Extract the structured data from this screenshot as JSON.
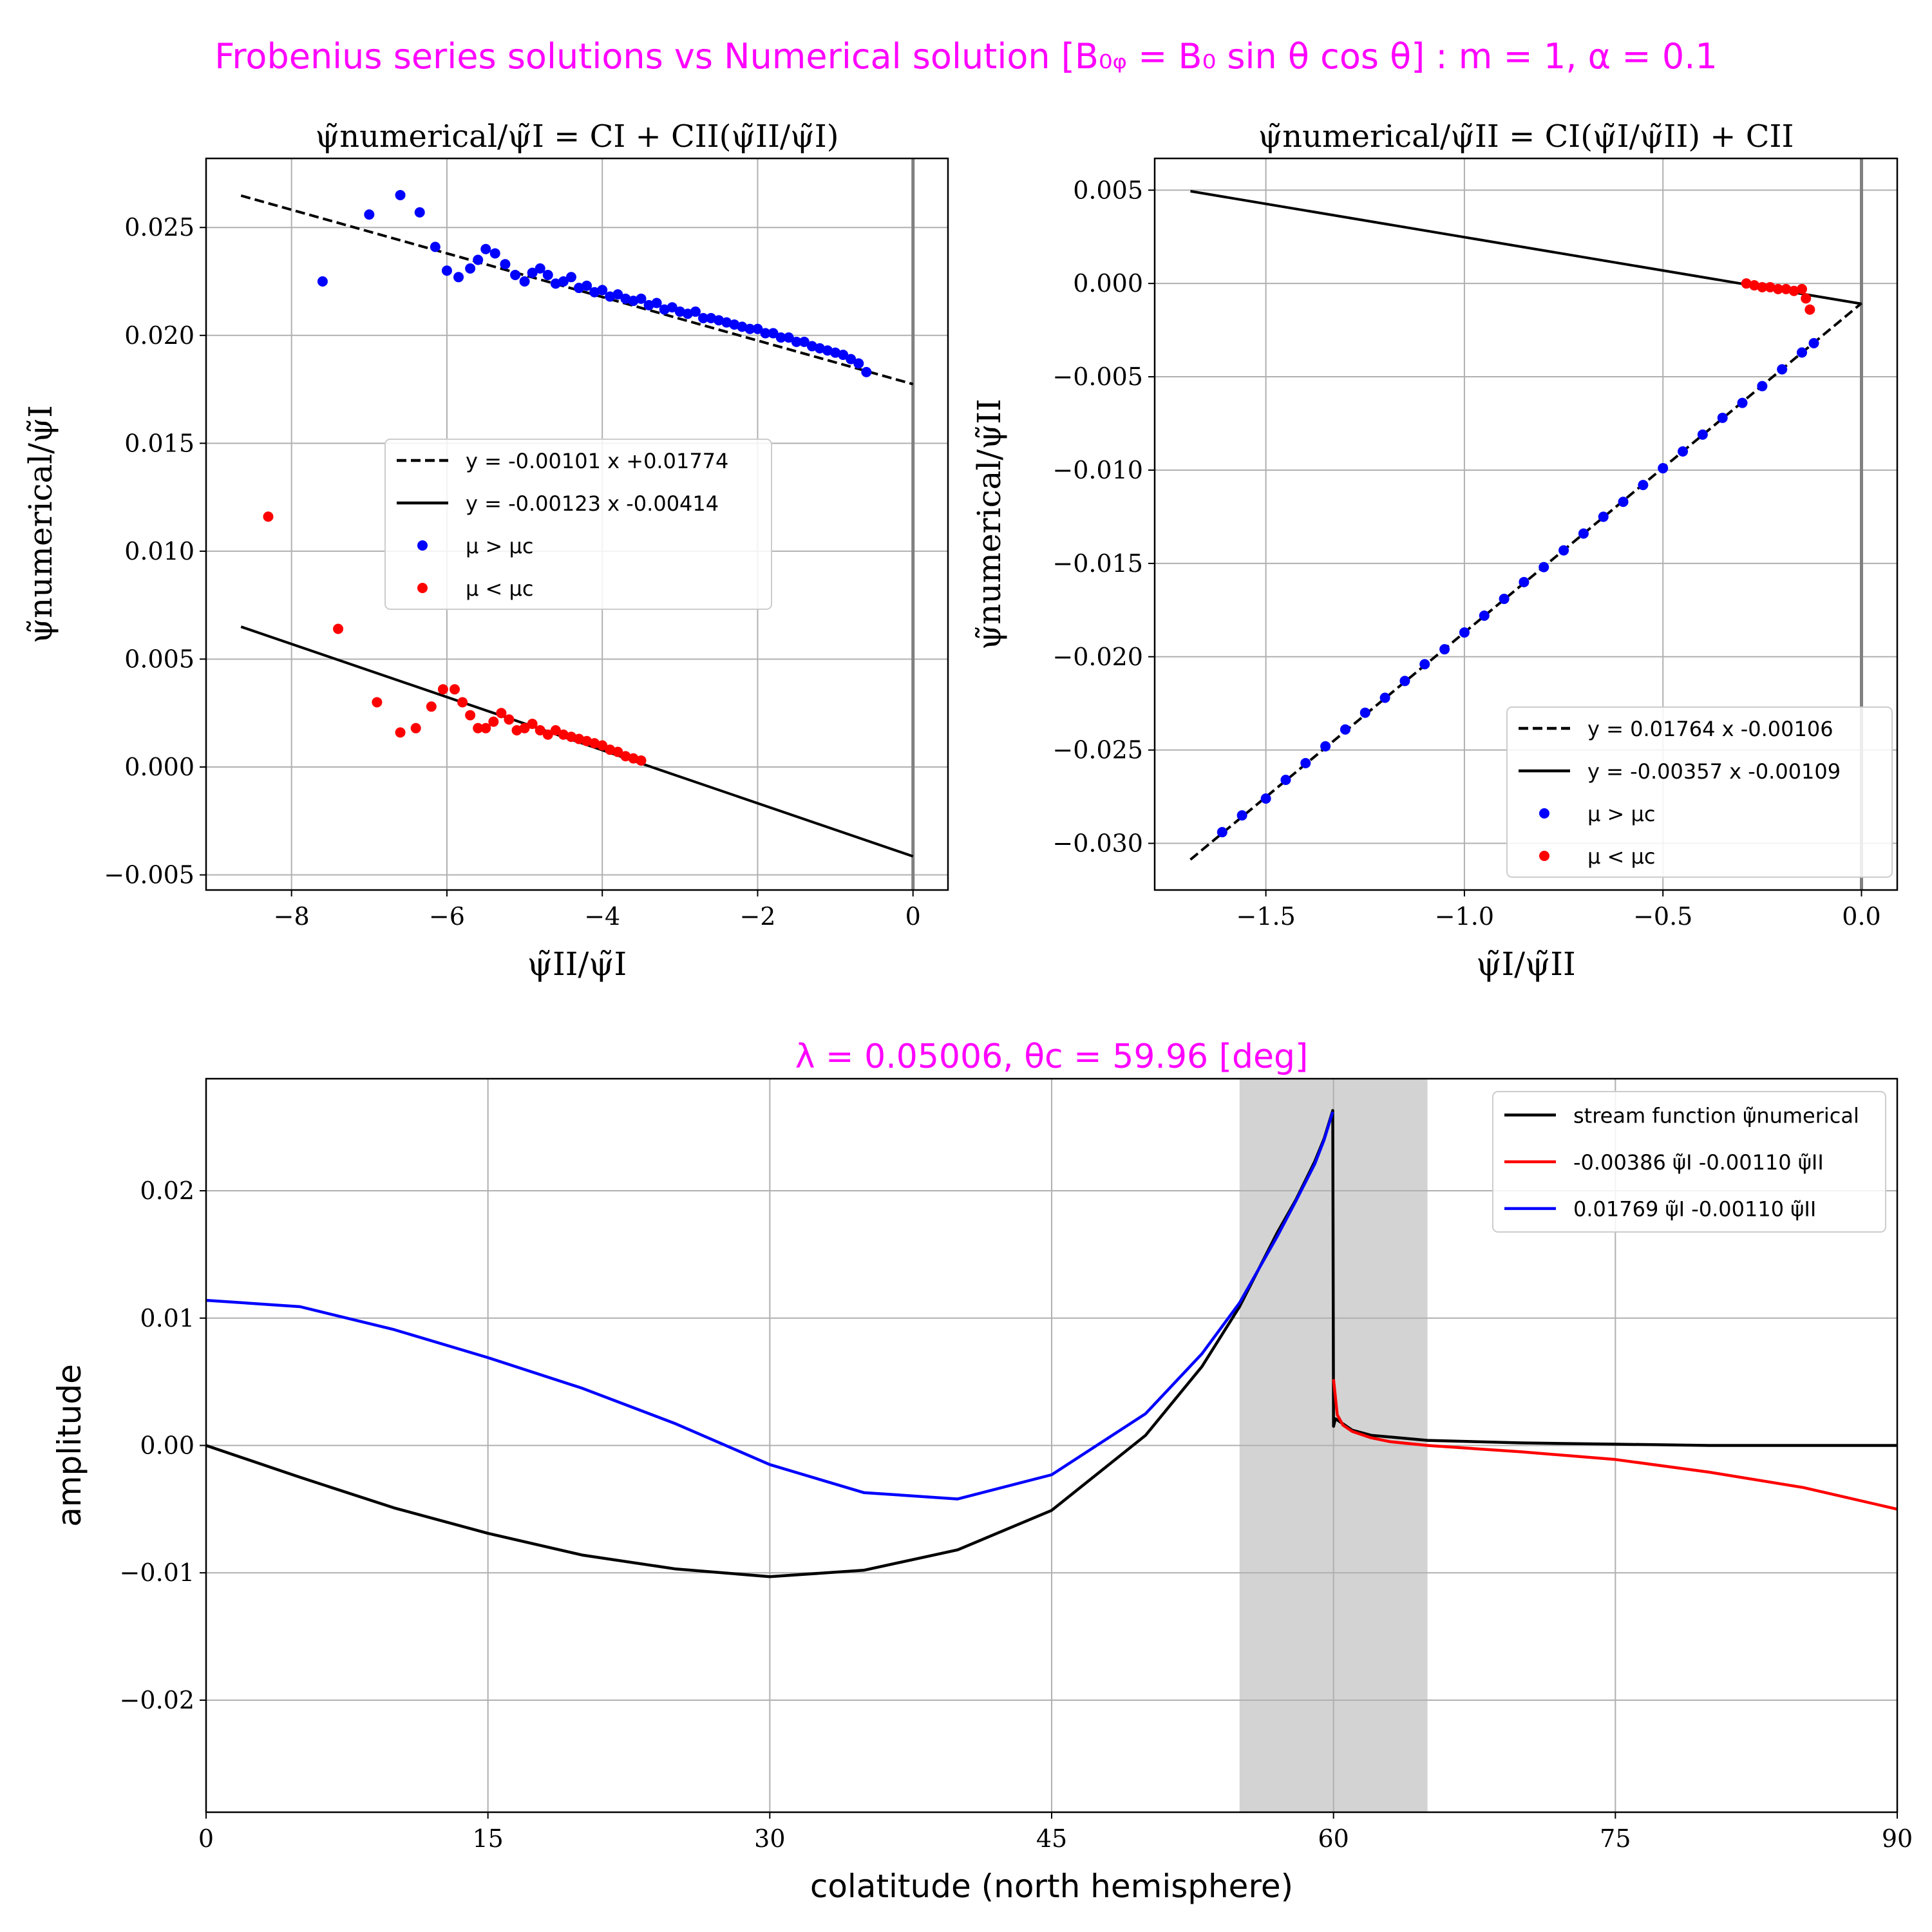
{
  "suptitle": "Frobenius series solutions vs Numerical solution [B₀ᵩ = B₀ sin θ cos θ] : m = 1, α = 0.1",
  "colors": {
    "title": "#ff00ff",
    "blue": "#0000ff",
    "red": "#ff0000",
    "black": "#000000",
    "grid": "#b0b0b0",
    "shade": "#d3d3d3",
    "vline": "#808080"
  },
  "chart_data": [
    {
      "type": "scatter",
      "title": "ψ̃numerical/ψ̃I = CI + CII(ψ̃II/ψ̃I)",
      "xlabel": "ψ̃II/ψ̃I",
      "ylabel": "ψ̃numerical/ψ̃I",
      "xlim": [
        -9.1,
        0.45
      ],
      "ylim": [
        -0.0057,
        0.0282
      ],
      "xticks": [
        -8,
        -6,
        -4,
        -2,
        0
      ],
      "yticks": [
        -0.005,
        0.0,
        0.005,
        0.01,
        0.015,
        0.02,
        0.025
      ],
      "xtick_labels": [
        "−8",
        "−6",
        "−4",
        "−2",
        "0"
      ],
      "ytick_labels": [
        "−0.005",
        "0.000",
        "0.005",
        "0.010",
        "0.015",
        "0.020",
        "0.025"
      ],
      "grid": true,
      "vline_x": 0,
      "legend_position": "center",
      "lines": [
        {
          "name": "y = -0.00101 x +0.01774",
          "slope": -0.00101,
          "intercept": 0.01774,
          "x_range": [
            -8.65,
            0
          ],
          "style": "dashed",
          "color": "#000000"
        },
        {
          "name": "y = -0.00123 x -0.00414",
          "slope": -0.00123,
          "intercept": -0.00414,
          "x_range": [
            -8.65,
            0
          ],
          "style": "solid",
          "color": "#000000"
        }
      ],
      "series": [
        {
          "name": "μ > μc",
          "color": "#0000ff",
          "points": [
            [
              -7.6,
              0.0225
            ],
            [
              -7.0,
              0.0256
            ],
            [
              -6.6,
              0.0265
            ],
            [
              -6.35,
              0.0257
            ],
            [
              -6.15,
              0.0241
            ],
            [
              -6.0,
              0.023
            ],
            [
              -5.85,
              0.0227
            ],
            [
              -5.7,
              0.0231
            ],
            [
              -5.6,
              0.0235
            ],
            [
              -5.5,
              0.024
            ],
            [
              -5.38,
              0.0238
            ],
            [
              -5.25,
              0.0233
            ],
            [
              -5.12,
              0.0228
            ],
            [
              -5.0,
              0.0225
            ],
            [
              -4.9,
              0.0229
            ],
            [
              -4.8,
              0.0231
            ],
            [
              -4.7,
              0.0228
            ],
            [
              -4.6,
              0.0224
            ],
            [
              -4.5,
              0.0225
            ],
            [
              -4.4,
              0.0227
            ],
            [
              -4.3,
              0.0222
            ],
            [
              -4.2,
              0.0223
            ],
            [
              -4.1,
              0.022
            ],
            [
              -4.0,
              0.0221
            ],
            [
              -3.9,
              0.0218
            ],
            [
              -3.8,
              0.0219
            ],
            [
              -3.7,
              0.0217
            ],
            [
              -3.6,
              0.0216
            ],
            [
              -3.5,
              0.0217
            ],
            [
              -3.4,
              0.0214
            ],
            [
              -3.3,
              0.0215
            ],
            [
              -3.2,
              0.0212
            ],
            [
              -3.1,
              0.0213
            ],
            [
              -3.0,
              0.0211
            ],
            [
              -2.9,
              0.021
            ],
            [
              -2.8,
              0.0211
            ],
            [
              -2.7,
              0.0208
            ],
            [
              -2.6,
              0.0208
            ],
            [
              -2.5,
              0.0207
            ],
            [
              -2.4,
              0.0206
            ],
            [
              -2.3,
              0.0205
            ],
            [
              -2.2,
              0.0204
            ],
            [
              -2.1,
              0.0203
            ],
            [
              -2.0,
              0.0203
            ],
            [
              -1.9,
              0.0201
            ],
            [
              -1.8,
              0.0201
            ],
            [
              -1.7,
              0.0199
            ],
            [
              -1.6,
              0.0199
            ],
            [
              -1.5,
              0.0197
            ],
            [
              -1.4,
              0.0197
            ],
            [
              -1.3,
              0.0195
            ],
            [
              -1.2,
              0.0194
            ],
            [
              -1.1,
              0.0193
            ],
            [
              -1.0,
              0.0192
            ],
            [
              -0.9,
              0.0191
            ],
            [
              -0.8,
              0.0189
            ],
            [
              -0.7,
              0.0187
            ],
            [
              -0.6,
              0.0183
            ]
          ]
        },
        {
          "name": "μ < μc",
          "color": "#ff0000",
          "points": [
            [
              -8.3,
              0.0116
            ],
            [
              -7.4,
              0.0064
            ],
            [
              -6.9,
              0.003
            ],
            [
              -6.6,
              0.0016
            ],
            [
              -6.4,
              0.0018
            ],
            [
              -6.2,
              0.0028
            ],
            [
              -6.05,
              0.0036
            ],
            [
              -5.9,
              0.0036
            ],
            [
              -5.8,
              0.003
            ],
            [
              -5.7,
              0.0024
            ],
            [
              -5.6,
              0.0018
            ],
            [
              -5.5,
              0.0018
            ],
            [
              -5.4,
              0.0021
            ],
            [
              -5.3,
              0.0025
            ],
            [
              -5.2,
              0.0022
            ],
            [
              -5.1,
              0.0017
            ],
            [
              -5.0,
              0.0018
            ],
            [
              -4.9,
              0.002
            ],
            [
              -4.8,
              0.0017
            ],
            [
              -4.7,
              0.0015
            ],
            [
              -4.6,
              0.0017
            ],
            [
              -4.5,
              0.0015
            ],
            [
              -4.4,
              0.0014
            ],
            [
              -4.3,
              0.0013
            ],
            [
              -4.2,
              0.0012
            ],
            [
              -4.1,
              0.0011
            ],
            [
              -4.0,
              0.001
            ],
            [
              -3.9,
              0.0008
            ],
            [
              -3.8,
              0.0007
            ],
            [
              -3.7,
              0.0005
            ],
            [
              -3.6,
              0.0004
            ],
            [
              -3.5,
              0.0003
            ]
          ]
        }
      ]
    },
    {
      "type": "scatter",
      "title": "ψ̃numerical/ψ̃II = CI(ψ̃I/ψ̃II) + CII",
      "xlabel": "ψ̃I/ψ̃II",
      "ylabel": "ψ̃numerical/ψ̃II",
      "xlim": [
        -1.78,
        0.09
      ],
      "ylim": [
        -0.0325,
        0.0067
      ],
      "xticks": [
        -1.5,
        -1.0,
        -0.5,
        0.0
      ],
      "yticks": [
        -0.03,
        -0.025,
        -0.02,
        -0.015,
        -0.01,
        -0.005,
        0.0,
        0.005
      ],
      "xtick_labels": [
        "−1.5",
        "−1.0",
        "−0.5",
        "0.0"
      ],
      "ytick_labels": [
        "−0.030",
        "−0.025",
        "−0.020",
        "−0.015",
        "−0.010",
        "−0.005",
        "0.000",
        "0.005"
      ],
      "grid": true,
      "vline_x": 0,
      "legend_position": "lower right",
      "lines": [
        {
          "name": "y = 0.01764 x -0.00106",
          "slope": 0.01764,
          "intercept": -0.00106,
          "x_range": [
            -1.69,
            0
          ],
          "style": "dashed",
          "color": "#000000"
        },
        {
          "name": "y = -0.00357 x -0.00109",
          "slope": -0.00357,
          "intercept": -0.00109,
          "x_range": [
            -1.69,
            0
          ],
          "style": "solid",
          "color": "#000000"
        }
      ],
      "series": [
        {
          "name": "μ > μc",
          "color": "#0000ff",
          "points": [
            [
              -1.61,
              -0.0294
            ],
            [
              -1.56,
              -0.0285
            ],
            [
              -1.5,
              -0.0276
            ],
            [
              -1.45,
              -0.0266
            ],
            [
              -1.4,
              -0.0257
            ],
            [
              -1.35,
              -0.0248
            ],
            [
              -1.3,
              -0.0239
            ],
            [
              -1.25,
              -0.023
            ],
            [
              -1.2,
              -0.0222
            ],
            [
              -1.15,
              -0.0213
            ],
            [
              -1.1,
              -0.0204
            ],
            [
              -1.05,
              -0.0196
            ],
            [
              -1.0,
              -0.0187
            ],
            [
              -0.95,
              -0.0178
            ],
            [
              -0.9,
              -0.0169
            ],
            [
              -0.85,
              -0.016
            ],
            [
              -0.8,
              -0.0152
            ],
            [
              -0.75,
              -0.0143
            ],
            [
              -0.7,
              -0.0134
            ],
            [
              -0.65,
              -0.0125
            ],
            [
              -0.6,
              -0.0117
            ],
            [
              -0.55,
              -0.0108
            ],
            [
              -0.5,
              -0.0099
            ],
            [
              -0.45,
              -0.009
            ],
            [
              -0.4,
              -0.0081
            ],
            [
              -0.35,
              -0.0072
            ],
            [
              -0.3,
              -0.0064
            ],
            [
              -0.25,
              -0.0055
            ],
            [
              -0.2,
              -0.0046
            ],
            [
              -0.15,
              -0.0037
            ],
            [
              -0.12,
              -0.0032
            ]
          ]
        },
        {
          "name": "μ < μc",
          "color": "#ff0000",
          "points": [
            [
              -0.29,
              0.0
            ],
            [
              -0.27,
              -0.0001
            ],
            [
              -0.25,
              -0.0002
            ],
            [
              -0.23,
              -0.0002
            ],
            [
              -0.21,
              -0.0003
            ],
            [
              -0.19,
              -0.0003
            ],
            [
              -0.17,
              -0.0004
            ],
            [
              -0.15,
              -0.0003
            ],
            [
              -0.14,
              -0.0008
            ],
            [
              -0.13,
              -0.0014
            ]
          ]
        }
      ]
    },
    {
      "type": "line",
      "title": "λ = 0.05006, θc = 59.96 [deg]",
      "xlabel": "colatitude (north hemisphere)",
      "ylabel": "amplitude",
      "xlim": [
        0,
        90
      ],
      "ylim": [
        -0.0288,
        0.0288
      ],
      "xticks": [
        0,
        15,
        30,
        45,
        60,
        75,
        90
      ],
      "yticks": [
        -0.02,
        -0.01,
        0.0,
        0.01,
        0.02
      ],
      "xtick_labels": [
        "0",
        "15",
        "30",
        "45",
        "60",
        "75",
        "90"
      ],
      "ytick_labels": [
        "−0.02",
        "−0.01",
        "0.00",
        "0.01",
        "0.02"
      ],
      "grid": true,
      "shaded_x_range": [
        55,
        65
      ],
      "legend_position": "upper right",
      "series": [
        {
          "name": "stream function ψ̃numerical",
          "color": "#000000",
          "x": [
            0,
            5,
            10,
            15,
            20,
            25,
            30,
            35,
            40,
            45,
            50,
            53,
            55,
            57,
            58,
            59,
            59.5,
            59.96,
            60.0,
            60.1,
            60.5,
            61,
            62,
            65,
            70,
            75,
            80,
            85,
            90
          ],
          "y": [
            0.0,
            -0.0025,
            -0.0049,
            -0.0069,
            -0.0086,
            -0.0097,
            -0.0103,
            -0.0098,
            -0.0082,
            -0.0051,
            0.0008,
            0.0062,
            0.0109,
            0.0167,
            0.0193,
            0.0223,
            0.0241,
            0.0263,
            0.0015,
            0.0021,
            0.0017,
            0.0012,
            0.0008,
            0.0004,
            0.0002,
            0.0001,
            0.0,
            0.0,
            0.0
          ]
        },
        {
          "name": "-0.00386 ψ̃I -0.00110 ψ̃II",
          "color": "#ff0000",
          "x": [
            60.0,
            60.2,
            60.5,
            61,
            62,
            63,
            65,
            70,
            75,
            80,
            85,
            90
          ],
          "y": [
            0.0052,
            0.0024,
            0.0016,
            0.0011,
            0.0006,
            0.0003,
            0.0,
            -0.0005,
            -0.0011,
            -0.0021,
            -0.0033,
            -0.005
          ]
        },
        {
          "name": "0.01769 ψ̃I -0.00110 ψ̃II",
          "color": "#0000ff",
          "x": [
            0,
            5,
            10,
            15,
            20,
            25,
            30,
            35,
            40,
            45,
            50,
            53,
            55,
            57,
            58,
            59,
            59.5,
            59.96
          ],
          "y": [
            0.0114,
            0.0109,
            0.0091,
            0.0069,
            0.0045,
            0.0017,
            -0.0015,
            -0.0037,
            -0.0042,
            -0.0023,
            0.0025,
            0.0072,
            0.0112,
            0.0164,
            0.0192,
            0.0221,
            0.024,
            0.0262
          ]
        }
      ]
    }
  ]
}
